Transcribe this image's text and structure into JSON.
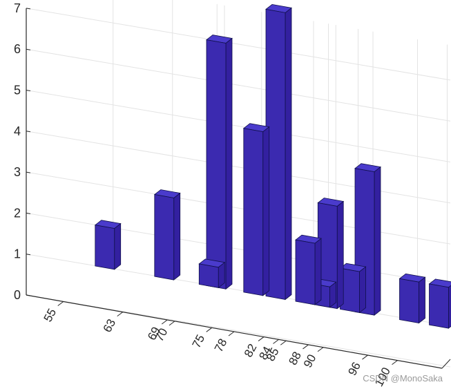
{
  "chart_data": {
    "type": "bar",
    "style": "3d",
    "x": [
      55,
      63,
      69,
      70,
      75,
      78,
      82,
      84,
      85,
      88,
      90,
      96,
      100
    ],
    "x_tick_labels": [
      "55",
      "63",
      "69",
      "70",
      "75",
      "78",
      "82",
      "84",
      "85",
      "88",
      "90",
      "96",
      "100"
    ],
    "values": [
      1,
      2,
      0.5,
      6,
      4,
      7,
      1.5,
      0.5,
      2.5,
      1,
      3.5,
      1,
      1
    ],
    "ylim": [
      0,
      7
    ],
    "y_ticks": [
      0,
      1,
      2,
      3,
      4,
      5,
      6,
      7
    ],
    "y_tick_labels": [
      "0",
      "1",
      "2",
      "3",
      "4",
      "5",
      "6",
      "7"
    ],
    "grid": true,
    "colors": {
      "bar_front": "#3b2ab0",
      "bar_side": "#3320a0",
      "bar_top": "#4a3bcc",
      "edge": "#10104a",
      "grid": "#e3e3e3",
      "axis": "#262626"
    }
  },
  "watermark": "CSDN @MonoSaka"
}
